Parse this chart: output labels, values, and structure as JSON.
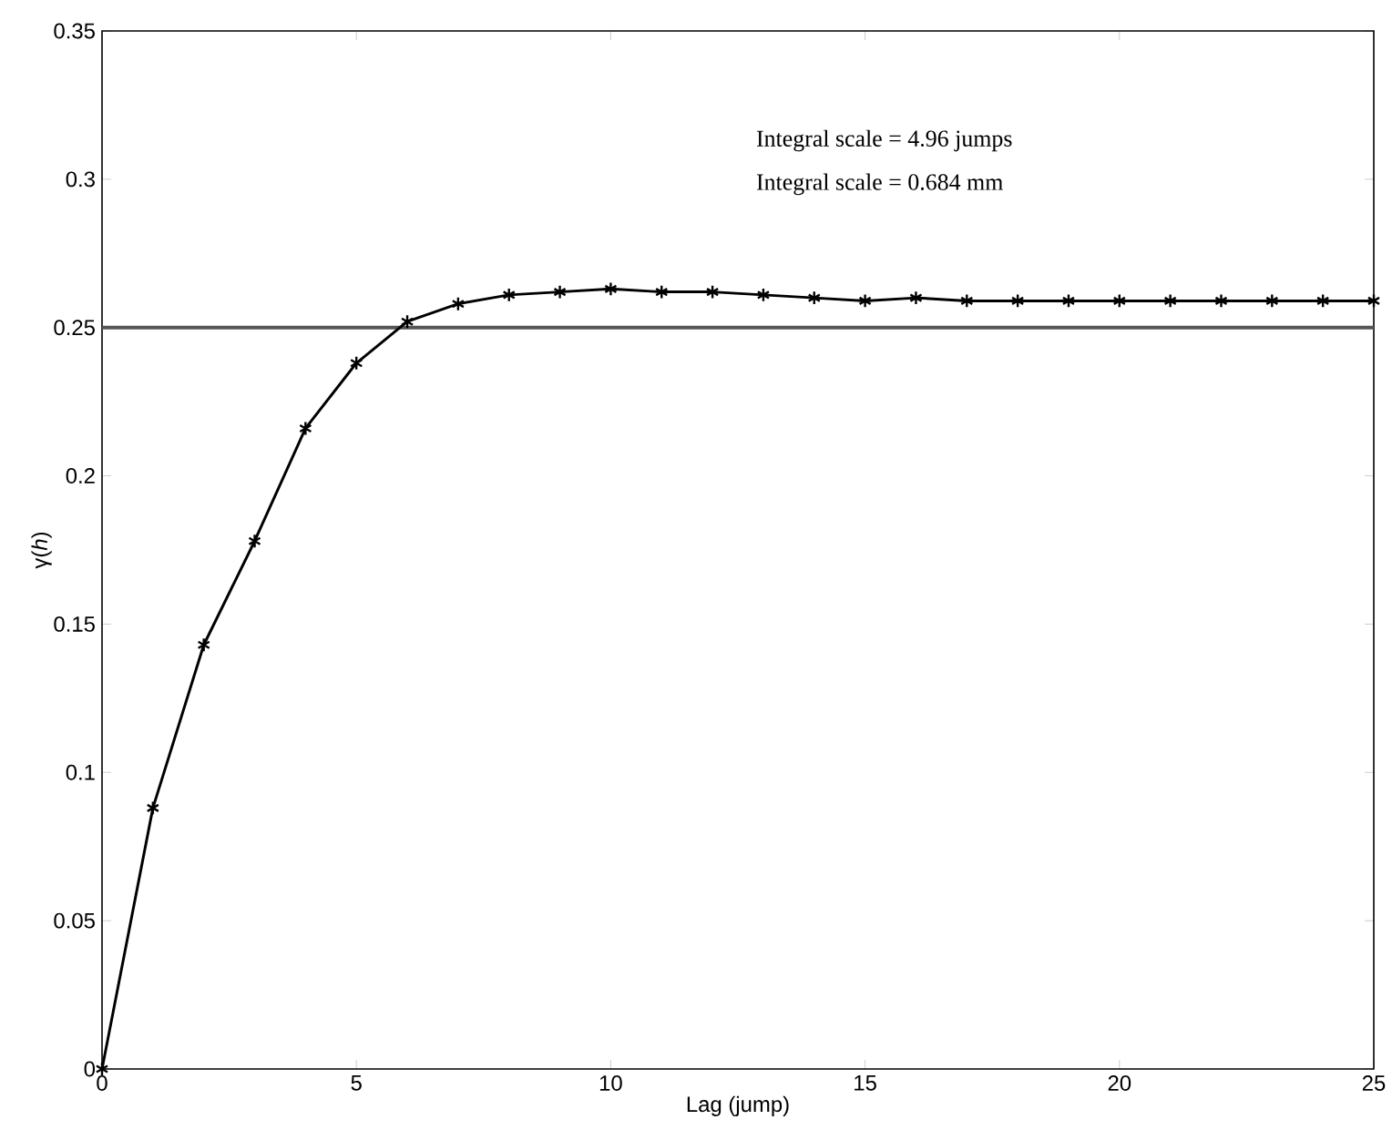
{
  "chart_data": {
    "type": "line",
    "xlabel": "Lag (jump)",
    "ylabel": "γ(*h*)",
    "annotations": [
      "Integral scale = 4.96 jumps",
      "Integral scale = 0.684 mm"
    ],
    "x": [
      0,
      1,
      2,
      3,
      4,
      5,
      6,
      7,
      8,
      9,
      10,
      11,
      12,
      13,
      14,
      15,
      16,
      17,
      18,
      19,
      20,
      21,
      22,
      23,
      24,
      25
    ],
    "series": [
      {
        "color": "#000000",
        "values": [
          0,
          0.088,
          0.143,
          0.178,
          0.216,
          0.238,
          0.252,
          0.258,
          0.261,
          0.262,
          0.263,
          0.262,
          0.262,
          0.261,
          0.26,
          0.259,
          0.26,
          0.259,
          0.259,
          0.259,
          0.259,
          0.259,
          0.259,
          0.259,
          0.259,
          0.259
        ]
      }
    ],
    "ref_lines": [
      {
        "axis": "y",
        "value": 0.25,
        "color": "#555555"
      }
    ],
    "xlim": [
      0,
      25
    ],
    "ylim": [
      0,
      0.35
    ],
    "xticks": [
      0,
      5,
      10,
      15,
      20,
      25
    ],
    "yticks": [
      0,
      0.05,
      0.1,
      0.15,
      0.2,
      0.25,
      0.3,
      0.35
    ],
    "marker": "cross",
    "line_style": "solid",
    "grid": false
  }
}
